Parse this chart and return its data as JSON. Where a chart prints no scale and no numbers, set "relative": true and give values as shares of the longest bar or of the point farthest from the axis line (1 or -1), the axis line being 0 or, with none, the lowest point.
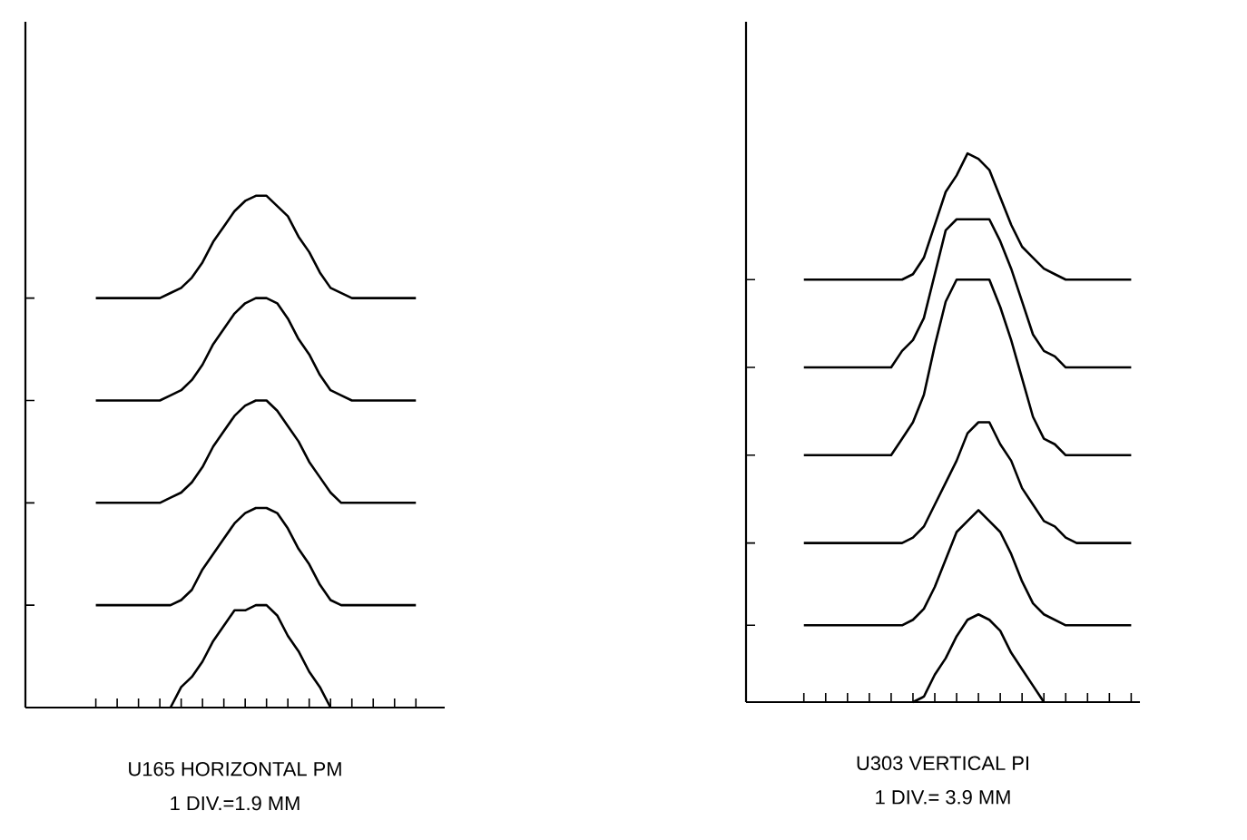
{
  "chart_data": [
    {
      "type": "line",
      "relative": true,
      "xlabel": "U165 HORIZONTAL PM",
      "annotations": [
        "1 DIV.=1.9 MM"
      ],
      "categories": [
        null,
        null,
        null,
        null,
        null,
        null,
        null,
        null,
        null,
        null,
        null,
        null,
        null,
        null,
        null,
        null,
        null,
        null,
        null,
        null,
        null,
        null,
        null,
        null,
        null,
        null,
        null,
        null,
        null,
        null,
        null
      ],
      "series": [
        {
          "color": "#000000",
          "values": [
            null,
            null,
            null,
            null,
            null,
            null,
            null,
            0,
            0.04,
            0.06,
            0.09,
            0.13,
            0.16,
            0.19,
            0.19,
            0.2,
            0.2,
            0.18,
            0.14,
            0.11,
            0.07,
            0.04,
            0,
            null,
            null,
            null,
            null,
            null,
            null,
            null,
            null
          ]
        },
        {
          "color": "#000000",
          "values": [
            0.2,
            0.2,
            0.2,
            0.2,
            0.2,
            0.2,
            0.2,
            0.2,
            0.21,
            0.23,
            0.27,
            0.3,
            0.33,
            0.36,
            0.38,
            0.39,
            0.39,
            0.38,
            0.35,
            0.31,
            0.28,
            0.24,
            0.21,
            0.2,
            0.2,
            0.2,
            0.2,
            0.2,
            0.2,
            0.2,
            0.2
          ]
        },
        {
          "color": "#000000",
          "values": [
            0.4,
            0.4,
            0.4,
            0.4,
            0.4,
            0.4,
            0.4,
            0.41,
            0.42,
            0.44,
            0.47,
            0.51,
            0.54,
            0.57,
            0.59,
            0.6,
            0.6,
            0.58,
            0.55,
            0.52,
            0.48,
            0.45,
            0.42,
            0.4,
            0.4,
            0.4,
            0.4,
            0.4,
            0.4,
            0.4,
            0.4
          ]
        },
        {
          "color": "#000000",
          "values": [
            0.6,
            0.6,
            0.6,
            0.6,
            0.6,
            0.6,
            0.6,
            0.61,
            0.62,
            0.64,
            0.67,
            0.71,
            0.74,
            0.77,
            0.79,
            0.8,
            0.8,
            0.79,
            0.76,
            0.72,
            0.69,
            0.65,
            0.62,
            0.61,
            0.6,
            0.6,
            0.6,
            0.6,
            0.6,
            0.6,
            0.6
          ]
        },
        {
          "color": "#000000",
          "values": [
            0.8,
            0.8,
            0.8,
            0.8,
            0.8,
            0.8,
            0.8,
            0.81,
            0.82,
            0.84,
            0.87,
            0.91,
            0.94,
            0.97,
            0.99,
            1.0,
            1.0,
            0.98,
            0.96,
            0.92,
            0.89,
            0.85,
            0.82,
            0.81,
            0.8,
            0.8,
            0.8,
            0.8,
            0.8,
            0.8,
            0.8
          ]
        }
      ]
    },
    {
      "type": "line",
      "relative": true,
      "xlabel": "U303 VERTICAL PI",
      "annotations": [
        "1 DIV.= 3.9 MM"
      ],
      "categories": [
        null,
        null,
        null,
        null,
        null,
        null,
        null,
        null,
        null,
        null,
        null,
        null,
        null,
        null,
        null,
        null,
        null,
        null,
        null,
        null,
        null,
        null,
        null,
        null,
        null,
        null,
        null,
        null,
        null,
        null,
        null
      ],
      "series": [
        {
          "color": "#000000",
          "values": [
            null,
            null,
            null,
            null,
            null,
            null,
            null,
            null,
            null,
            null,
            0,
            0.01,
            0.05,
            0.08,
            0.12,
            0.15,
            0.16,
            0.15,
            0.13,
            0.09,
            0.06,
            0.03,
            0,
            null,
            null,
            null,
            null,
            null,
            null,
            null,
            null
          ]
        },
        {
          "color": "#000000",
          "values": [
            0.14,
            0.14,
            0.14,
            0.14,
            0.14,
            0.14,
            0.14,
            0.14,
            0.14,
            0.14,
            0.15,
            0.17,
            0.21,
            0.26,
            0.31,
            0.33,
            0.35,
            0.33,
            0.31,
            0.27,
            0.22,
            0.18,
            0.16,
            0.15,
            0.14,
            0.14,
            0.14,
            0.14,
            0.14,
            0.14,
            0.14
          ]
        },
        {
          "color": "#000000",
          "values": [
            0.29,
            0.29,
            0.29,
            0.29,
            0.29,
            0.29,
            0.29,
            0.29,
            0.29,
            0.29,
            0.3,
            0.32,
            0.36,
            0.4,
            0.44,
            0.49,
            0.51,
            0.51,
            0.47,
            0.44,
            0.39,
            0.36,
            0.33,
            0.32,
            0.3,
            0.29,
            0.29,
            0.29,
            0.29,
            0.29,
            0.29
          ]
        },
        {
          "color": "#000000",
          "values": [
            0.45,
            0.45,
            0.45,
            0.45,
            0.45,
            0.45,
            0.45,
            0.45,
            0.45,
            0.48,
            0.51,
            0.56,
            0.65,
            0.73,
            0.77,
            0.77,
            0.77,
            0.77,
            0.72,
            0.66,
            0.59,
            0.52,
            0.48,
            0.47,
            0.45,
            0.45,
            0.45,
            0.45,
            0.45,
            0.45,
            0.45
          ]
        },
        {
          "color": "#000000",
          "values": [
            0.61,
            0.61,
            0.61,
            0.61,
            0.61,
            0.61,
            0.61,
            0.61,
            0.61,
            0.64,
            0.66,
            0.7,
            0.78,
            0.86,
            0.88,
            0.88,
            0.88,
            0.88,
            0.84,
            0.79,
            0.73,
            0.67,
            0.64,
            0.63,
            0.61,
            0.61,
            0.61,
            0.61,
            0.61,
            0.61,
            0.61
          ]
        },
        {
          "color": "#000000",
          "values": [
            0.77,
            0.77,
            0.77,
            0.77,
            0.77,
            0.77,
            0.77,
            0.77,
            0.77,
            0.77,
            0.78,
            0.81,
            0.87,
            0.93,
            0.96,
            1.0,
            0.99,
            0.97,
            0.92,
            0.87,
            0.83,
            0.81,
            0.79,
            0.78,
            0.77,
            0.77,
            0.77,
            0.77,
            0.77,
            0.77,
            0.77
          ]
        }
      ]
    }
  ]
}
